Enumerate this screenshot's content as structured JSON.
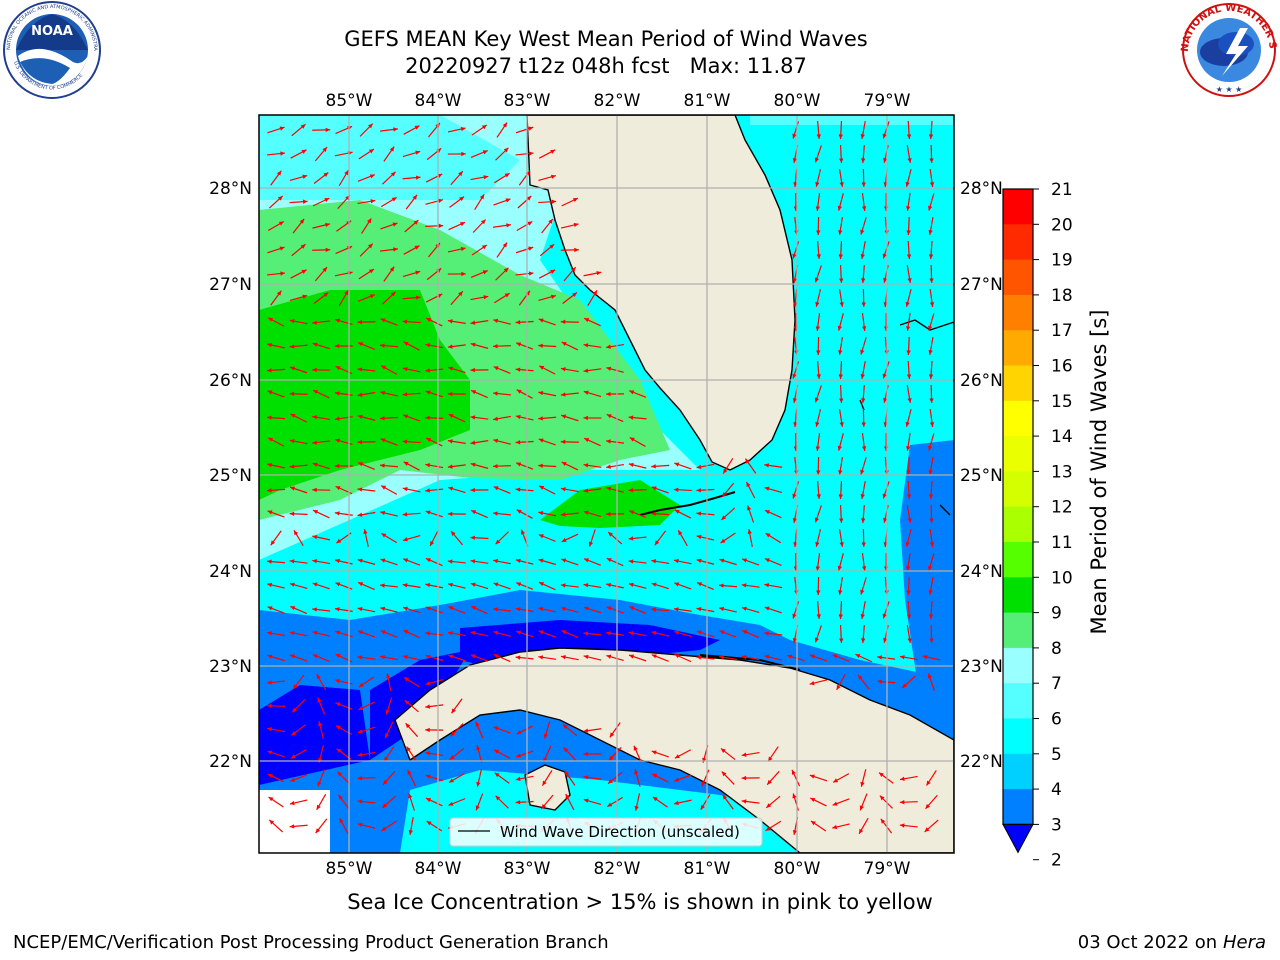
{
  "header": {
    "title": "GEFS MEAN Key West Mean Period of Wind Waves",
    "subtitle": "20220927 t12z 048h fcst   Max: 11.87"
  },
  "logos": {
    "left_icon": "noaa-logo-icon",
    "right_icon": "nws-logo-icon",
    "noaa_text": "NOAA",
    "noaa_ring_text": "NATIONAL OCEANIC AND ATMOSPHERIC ADMINISTRATION",
    "noaa_ring_bottom": "U.S. DEPARTMENT OF COMMERCE",
    "nws_ring_text": "NATIONAL WEATHER SERVICE"
  },
  "map": {
    "lon_labels": [
      "85°W",
      "84°W",
      "83°W",
      "82°W",
      "81°W",
      "80°W",
      "79°W"
    ],
    "lat_labels": [
      "28°N",
      "27°N",
      "26°N",
      "25°N",
      "24°N",
      "23°N",
      "22°N"
    ],
    "legend_label": "Wind Wave Direction (unscaled)",
    "colors": {
      "land": "#efecdc",
      "ocean_cyan": "#00ffff",
      "ocean_lightcyan": "#99ffff",
      "ocean_medcyan": "#55ffff",
      "ocean_blue": "#0080ff",
      "ocean_darkblue": "#0000ff",
      "ocean_green": "#00e000",
      "ocean_lightgreen": "#55ee77",
      "arrow": "#ff0000",
      "grid": "#b0b0b0"
    }
  },
  "colorbar": {
    "label": "Mean Period of Wind Waves [s]",
    "ticks": [
      "21",
      "20",
      "19",
      "18",
      "17",
      "16",
      "15",
      "14",
      "13",
      "12",
      "11",
      "10",
      "9",
      "8",
      "7",
      "6",
      "5",
      "4",
      "3",
      "2"
    ],
    "colors": [
      "#ff0000",
      "#ff2a00",
      "#ff5500",
      "#ff7f00",
      "#ffaa00",
      "#ffd400",
      "#ffff00",
      "#eaff00",
      "#d4ff00",
      "#aaff00",
      "#55ff00",
      "#00e000",
      "#55ee77",
      "#99ffff",
      "#55ffff",
      "#00ffff",
      "#00d0ff",
      "#0080ff",
      "#0000ff"
    ]
  },
  "footer": {
    "note": "Sea Ice Concentration > 15% is shown in pink to yellow",
    "credit": "NCEP/EMC/Verification Post Processing Product Generation Branch",
    "date": "03 Oct 2022 on",
    "host": "Hera"
  }
}
